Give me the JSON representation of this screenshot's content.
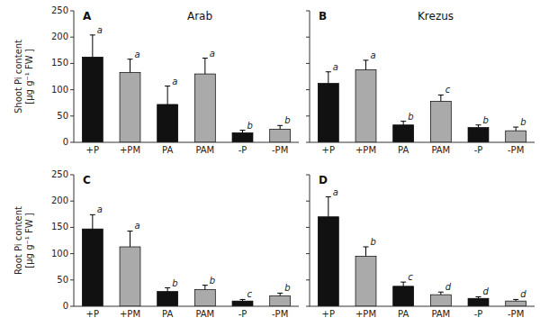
{
  "chart_data": [
    {
      "type": "bar",
      "title": "Arab",
      "annotations": [
        "A"
      ],
      "ylabel": "Shoot Pi content\n[μg g⁻¹ FW ]",
      "categories": [
        "+P",
        "+PM",
        "PA",
        "PAM",
        "-P",
        "-PM"
      ],
      "values": [
        162,
        133,
        72,
        130,
        18,
        25
      ],
      "errors": [
        42,
        25,
        35,
        30,
        5,
        7
      ],
      "colors": [
        "#111111",
        "#aaaaaa",
        "#111111",
        "#aaaaaa",
        "#111111",
        "#aaaaaa"
      ],
      "letters": [
        "a",
        "a",
        "a",
        "a",
        "b",
        "b"
      ],
      "ylim": [
        0,
        250
      ],
      "yticks": [
        0,
        50,
        100,
        150,
        200,
        250
      ],
      "grid": false
    },
    {
      "type": "bar",
      "title": "Krezus",
      "annotations": [
        "B"
      ],
      "categories": [
        "+P",
        "+PM",
        "PA",
        "PAM",
        "-P",
        "-PM"
      ],
      "values": [
        112,
        138,
        33,
        78,
        28,
        22
      ],
      "errors": [
        22,
        18,
        7,
        12,
        5,
        7
      ],
      "colors": [
        "#111111",
        "#aaaaaa",
        "#111111",
        "#aaaaaa",
        "#111111",
        "#aaaaaa"
      ],
      "letters": [
        "a",
        "a",
        "b",
        "c",
        "b",
        "b"
      ],
      "ylim": [
        0,
        250
      ],
      "yticks": [
        0,
        50,
        100,
        150,
        200,
        250
      ],
      "grid": false,
      "tick_labels": "x"
    },
    {
      "type": "bar",
      "annotations": [
        "C"
      ],
      "ylabel": "Root Pi content\n[μg g⁻¹ FW ]",
      "categories": [
        "+P",
        "+PM",
        "PA",
        "PAM",
        "-P",
        "-PM"
      ],
      "values": [
        147,
        113,
        28,
        32,
        10,
        20
      ],
      "errors": [
        27,
        30,
        7,
        8,
        3,
        5
      ],
      "colors": [
        "#111111",
        "#aaaaaa",
        "#111111",
        "#aaaaaa",
        "#111111",
        "#aaaaaa"
      ],
      "letters": [
        "a",
        "a",
        "b",
        "b",
        "c",
        "b"
      ],
      "ylim": [
        0,
        250
      ],
      "yticks": [
        0,
        50,
        100,
        150,
        200,
        250
      ],
      "grid": false
    },
    {
      "type": "bar",
      "annotations": [
        "D"
      ],
      "categories": [
        "+P",
        "+PM",
        "PA",
        "PAM",
        "-P",
        "-PM"
      ],
      "values": [
        170,
        95,
        38,
        22,
        15,
        10
      ],
      "errors": [
        38,
        18,
        8,
        5,
        3,
        3
      ],
      "colors": [
        "#111111",
        "#aaaaaa",
        "#111111",
        "#aaaaaa",
        "#111111",
        "#aaaaaa"
      ],
      "letters": [
        "a",
        "b",
        "c",
        "d",
        "d",
        "d"
      ],
      "ylim": [
        0,
        250
      ],
      "yticks": [
        0,
        50,
        100,
        150,
        200,
        250
      ],
      "grid": false,
      "tick_labels": "x"
    }
  ]
}
